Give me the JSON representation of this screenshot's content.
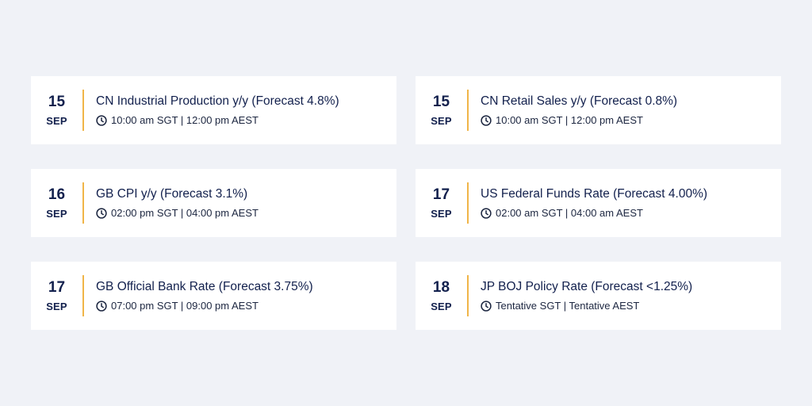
{
  "events": [
    {
      "day": "15",
      "month": "SEP",
      "title": "CN Industrial Production y/y (Forecast 4.8%)",
      "time": "10:00 am SGT | 12:00 pm AEST",
      "icon": "clock-icon"
    },
    {
      "day": "15",
      "month": "SEP",
      "title": "CN Retail Sales y/y (Forecast 0.8%)",
      "time": "10:00 am SGT | 12:00 pm AEST",
      "icon": "clock-icon"
    },
    {
      "day": "16",
      "month": "SEP",
      "title": "GB CPI y/y (Forecast 3.1%)",
      "time": "02:00 pm SGT | 04:00 pm AEST",
      "icon": "clock-icon"
    },
    {
      "day": "17",
      "month": "SEP",
      "title": "US Federal Funds Rate (Forecast 4.00%)",
      "time": "02:00 am SGT | 04:00 am AEST",
      "icon": "clock-icon"
    },
    {
      "day": "17",
      "month": "SEP",
      "title": "GB Official Bank Rate (Forecast 3.75%)",
      "time": "07:00 pm SGT | 09:00 pm AEST",
      "icon": "clock-icon"
    },
    {
      "day": "18",
      "month": "SEP",
      "title": "JP BOJ Policy Rate (Forecast <1.25%)",
      "time": "Tentative SGT | Tentative AEST",
      "icon": "clock-icon"
    }
  ],
  "colors": {
    "background": "#f0f2f7",
    "card": "#ffffff",
    "accent": "#f0b548",
    "text": "#12204d"
  }
}
